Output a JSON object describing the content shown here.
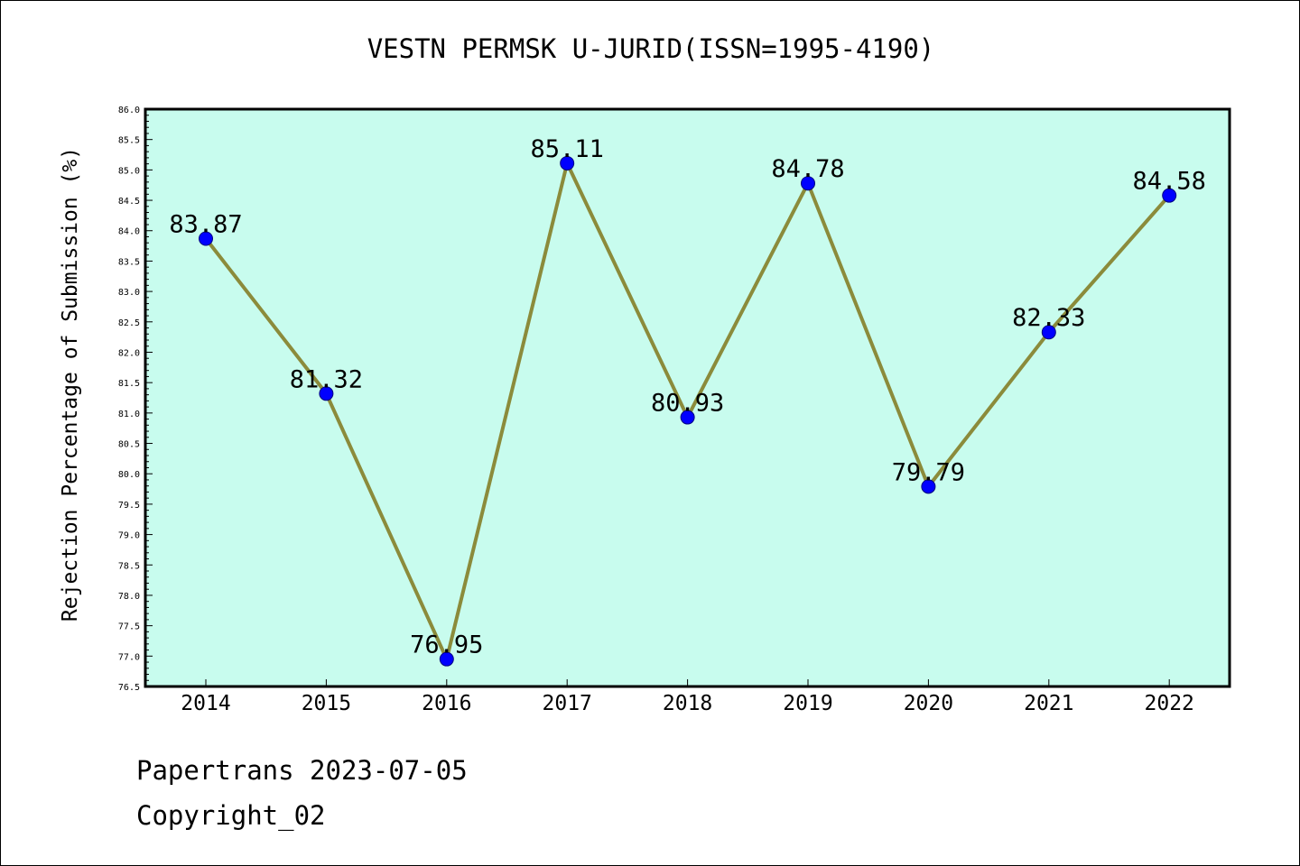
{
  "title": "VESTN PERMSK U-JURID(ISSN=1995-4190)",
  "footer": {
    "date_line": "Papertrans 2023-07-05",
    "copyright": "Copyright_02"
  },
  "chart_data": {
    "type": "line",
    "title": "VESTN PERMSK U-JURID(ISSN=1995-4190)",
    "xlabel": "",
    "ylabel": "Rejection Percentage of Submission (%)",
    "categories": [
      "2014",
      "2015",
      "2016",
      "2017",
      "2018",
      "2019",
      "2020",
      "2021",
      "2022"
    ],
    "series": [
      {
        "values": [
          83.87,
          81.32,
          76.95,
          85.11,
          80.93,
          84.78,
          79.79,
          82.33,
          84.58
        ]
      }
    ],
    "data_labels": [
      "83.87",
      "81.32",
      "76.95",
      "85.11",
      "80.93",
      "84.78",
      "79.79",
      "82.33",
      "84.58"
    ],
    "ylim": [
      76.5,
      86.0
    ],
    "ytick_step": 0.5,
    "grid": false,
    "legend": "none"
  },
  "colors": {
    "plot_background": "#c8fcee",
    "line": "#8b8b3b",
    "marker": "#0000ff",
    "marker_edge": "#000080",
    "axis": "#000000"
  }
}
